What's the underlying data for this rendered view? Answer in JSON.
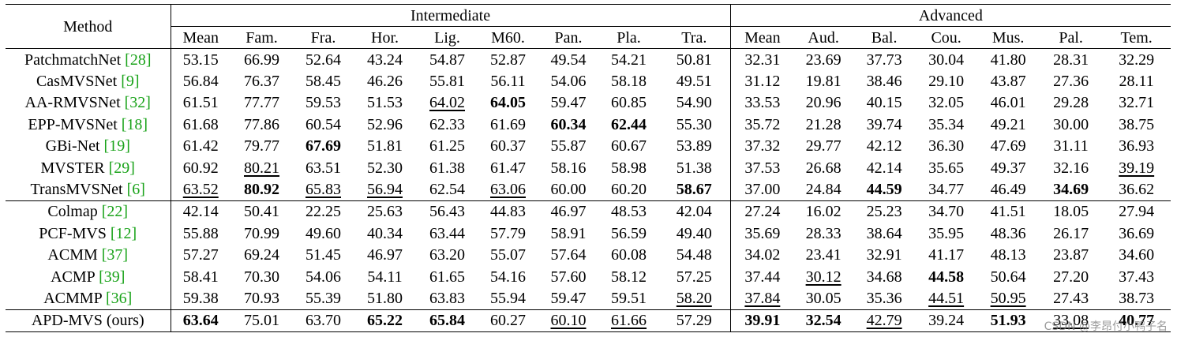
{
  "header": {
    "method_label": "Method",
    "group_intermediate": "Intermediate",
    "group_advanced": "Advanced",
    "columns": [
      "Mean",
      "Fam.",
      "Fra.",
      "Hor.",
      "Lig.",
      "M60.",
      "Pan.",
      "Pla.",
      "Tra.",
      "Mean",
      "Aud.",
      "Bal.",
      "Cou.",
      "Mus.",
      "Pal.",
      "Tem."
    ]
  },
  "rows": [
    {
      "name": "PatchmatchNet ",
      "cite": "[28]",
      "values": [
        "53.15",
        "66.99",
        "52.64",
        "43.24",
        "54.87",
        "52.87",
        "49.54",
        "54.21",
        "50.81",
        "32.31",
        "23.69",
        "37.73",
        "30.04",
        "41.80",
        "28.31",
        "32.29"
      ],
      "bold": [],
      "underline": []
    },
    {
      "name": "CasMVSNet ",
      "cite": "[9]",
      "values": [
        "56.84",
        "76.37",
        "58.45",
        "46.26",
        "55.81",
        "56.11",
        "54.06",
        "58.18",
        "49.51",
        "31.12",
        "19.81",
        "38.46",
        "29.10",
        "43.87",
        "27.36",
        "28.11"
      ],
      "bold": [],
      "underline": []
    },
    {
      "name": "AA-RMVSNet ",
      "cite": "[32]",
      "values": [
        "61.51",
        "77.77",
        "59.53",
        "51.53",
        "64.02",
        "64.05",
        "59.47",
        "60.85",
        "54.90",
        "33.53",
        "20.96",
        "40.15",
        "32.05",
        "46.01",
        "29.28",
        "32.71"
      ],
      "bold": [
        5
      ],
      "underline": [
        4
      ]
    },
    {
      "name": "EPP-MVSNet ",
      "cite": "[18]",
      "values": [
        "61.68",
        "77.86",
        "60.54",
        "52.96",
        "62.33",
        "61.69",
        "60.34",
        "62.44",
        "55.30",
        "35.72",
        "21.28",
        "39.74",
        "35.34",
        "49.21",
        "30.00",
        "38.75"
      ],
      "bold": [
        6,
        7
      ],
      "underline": []
    },
    {
      "name": "GBi-Net ",
      "cite": "[19]",
      "values": [
        "61.42",
        "79.77",
        "67.69",
        "51.81",
        "61.25",
        "60.37",
        "55.87",
        "60.67",
        "53.89",
        "37.32",
        "29.77",
        "42.12",
        "36.30",
        "47.69",
        "31.11",
        "36.93"
      ],
      "bold": [
        2
      ],
      "underline": []
    },
    {
      "name": "MVSTER ",
      "cite": "[29]",
      "values": [
        "60.92",
        "80.21",
        "63.51",
        "52.30",
        "61.38",
        "61.47",
        "58.16",
        "58.98",
        "51.38",
        "37.53",
        "26.68",
        "42.14",
        "35.65",
        "49.37",
        "32.16",
        "39.19"
      ],
      "bold": [],
      "underline": [
        1,
        15
      ]
    },
    {
      "name": "TransMVSNet ",
      "cite": "[6]",
      "values": [
        "63.52",
        "80.92",
        "65.83",
        "56.94",
        "62.54",
        "63.06",
        "60.00",
        "60.20",
        "58.67",
        "37.00",
        "24.84",
        "44.59",
        "34.77",
        "46.49",
        "34.69",
        "36.62"
      ],
      "bold": [
        1,
        8,
        11,
        14
      ],
      "underline": [
        0,
        2,
        3,
        5
      ]
    },
    {
      "name": "Colmap ",
      "cite": "[22]",
      "values": [
        "42.14",
        "50.41",
        "22.25",
        "25.63",
        "56.43",
        "44.83",
        "46.97",
        "48.53",
        "42.04",
        "27.24",
        "16.02",
        "25.23",
        "34.70",
        "41.51",
        "18.05",
        "27.94"
      ],
      "bold": [],
      "underline": []
    },
    {
      "name": "PCF-MVS ",
      "cite": "[12]",
      "values": [
        "55.88",
        "70.99",
        "49.60",
        "40.34",
        "63.44",
        "57.79",
        "58.91",
        "56.59",
        "49.40",
        "35.69",
        "28.33",
        "38.64",
        "35.95",
        "48.36",
        "26.17",
        "36.69"
      ],
      "bold": [],
      "underline": []
    },
    {
      "name": "ACMM ",
      "cite": "[37]",
      "values": [
        "57.27",
        "69.24",
        "51.45",
        "46.97",
        "63.20",
        "55.07",
        "57.64",
        "60.08",
        "54.48",
        "34.02",
        "23.41",
        "32.91",
        "41.17",
        "48.13",
        "23.87",
        "34.60"
      ],
      "bold": [],
      "underline": []
    },
    {
      "name": "ACMP ",
      "cite": "[39]",
      "values": [
        "58.41",
        "70.30",
        "54.06",
        "54.11",
        "61.65",
        "54.16",
        "57.60",
        "58.12",
        "57.25",
        "37.44",
        "30.12",
        "34.68",
        "44.58",
        "50.64",
        "27.20",
        "37.43"
      ],
      "bold": [
        12
      ],
      "underline": [
        10
      ]
    },
    {
      "name": "ACMMP ",
      "cite": "[36]",
      "values": [
        "59.38",
        "70.93",
        "55.39",
        "51.80",
        "63.83",
        "55.94",
        "59.47",
        "59.51",
        "58.20",
        "37.84",
        "30.05",
        "35.36",
        "44.51",
        "50.95",
        "27.43",
        "38.73"
      ],
      "bold": [],
      "underline": [
        8,
        9,
        12,
        13
      ]
    },
    {
      "name": "APD-MVS (ours)",
      "cite": "",
      "values": [
        "63.64",
        "75.01",
        "63.70",
        "65.22",
        "65.84",
        "60.27",
        "60.10",
        "61.66",
        "57.29",
        "39.91",
        "32.54",
        "42.79",
        "39.24",
        "51.93",
        "33.08",
        "40.77"
      ],
      "bold": [
        0,
        3,
        4,
        9,
        10,
        13,
        15
      ],
      "underline": [
        6,
        7,
        11,
        14
      ]
    }
  ],
  "watermark": "CSDN @李昂付小鸭子名",
  "colors": {
    "citation": "#1aa31a",
    "text": "#000000",
    "rule": "#000000"
  }
}
